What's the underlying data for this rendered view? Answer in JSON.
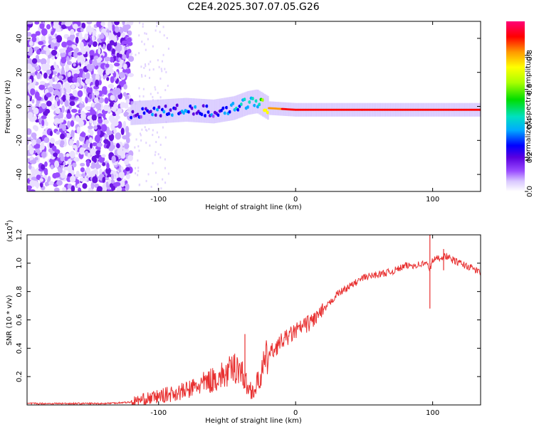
{
  "chart_data": [
    {
      "type": "heatmap",
      "title": "C2E4.2025.307.07.05.G26",
      "xlabel": "Height of straight line (km)",
      "ylabel": "Frequency (Hz)",
      "xlim": [
        -196,
        135
      ],
      "ylim": [
        -50,
        50
      ],
      "x_ticks": [
        -100,
        0,
        100
      ],
      "x_tick_labels": [
        "-100",
        "0",
        "100"
      ],
      "y_ticks": [
        -40,
        -20,
        0,
        20,
        40
      ],
      "y_tick_labels": [
        "-40",
        "-20",
        "0",
        "20",
        "40"
      ],
      "colorbar": {
        "label": "Normalized spectral amplitude",
        "range": [
          0,
          1
        ],
        "ticks": [
          0,
          0.2,
          0.4,
          0.6,
          0.8
        ],
        "tick_labels": [
          "0.0",
          "0.2",
          "0.4",
          "0.6",
          "0.8"
        ],
        "colors": [
          "#ffffff",
          "#d9c8ff",
          "#9a4cff",
          "#5a00e0",
          "#0000ff",
          "#00aaff",
          "#00e0c0",
          "#00dd00",
          "#aaff00",
          "#ffff00",
          "#ff9900",
          "#ff0000",
          "#ff0077"
        ]
      },
      "signal_track": {
        "x": [
          -120,
          -100,
          -80,
          -60,
          -45,
          -35,
          -28,
          -20,
          0,
          40,
          80,
          95,
          135
        ],
        "center_hz": [
          -4,
          -3,
          -2,
          -3,
          -1,
          2,
          3,
          -1,
          -2,
          -2,
          -2,
          -2,
          -2
        ],
        "amplitude": [
          0.35,
          0.4,
          0.45,
          0.4,
          0.5,
          0.55,
          0.6,
          0.85,
          0.9,
          0.95,
          0.95,
          0.9,
          0.88
        ]
      }
    },
    {
      "type": "line",
      "xlabel": "Height of straight line (km)",
      "ylabel": "SNR (10 * v/v)",
      "y_multiplier_label": "(x10",
      "y_multiplier_exp": "4",
      "y_multiplier_close": ")",
      "xlim": [
        -196,
        135
      ],
      "ylim": [
        0,
        1.2
      ],
      "x_ticks": [
        -100,
        0,
        100
      ],
      "x_tick_labels": [
        "-100",
        "0",
        "100"
      ],
      "y_ticks": [
        0.2,
        0.4,
        0.6,
        0.8,
        1.0,
        1.2
      ],
      "y_tick_labels": [
        "0.2",
        "0.4",
        "0.6",
        "0.8",
        "1.0",
        "1.2"
      ],
      "color": "#e83030",
      "series": [
        {
          "name": "SNR",
          "x": [
            -196,
            -170,
            -140,
            -120,
            -110,
            -100,
            -90,
            -80,
            -70,
            -60,
            -50,
            -42,
            -38,
            -35,
            -30,
            -20,
            -10,
            0,
            10,
            20,
            30,
            40,
            50,
            60,
            70,
            80,
            90,
            95,
            98,
            100,
            105,
            110,
            115,
            120,
            130,
            135
          ],
          "y": [
            0.01,
            0.01,
            0.01,
            0.02,
            0.04,
            0.06,
            0.08,
            0.1,
            0.14,
            0.18,
            0.22,
            0.28,
            0.2,
            0.12,
            0.1,
            0.35,
            0.45,
            0.52,
            0.58,
            0.66,
            0.78,
            0.84,
            0.9,
            0.92,
            0.94,
            0.98,
            0.99,
            1.0,
            0.96,
            1.02,
            1.04,
            1.05,
            1.02,
            1.0,
            0.96,
            0.93
          ]
        }
      ],
      "spikes": [
        {
          "x": -37,
          "y_top": 0.5,
          "y_bottom": 0.12
        },
        {
          "x": 98,
          "y_top": 1.22,
          "y_bottom": 0.68
        },
        {
          "x": 108,
          "y_top": 1.1,
          "y_bottom": 0.95
        }
      ]
    }
  ]
}
